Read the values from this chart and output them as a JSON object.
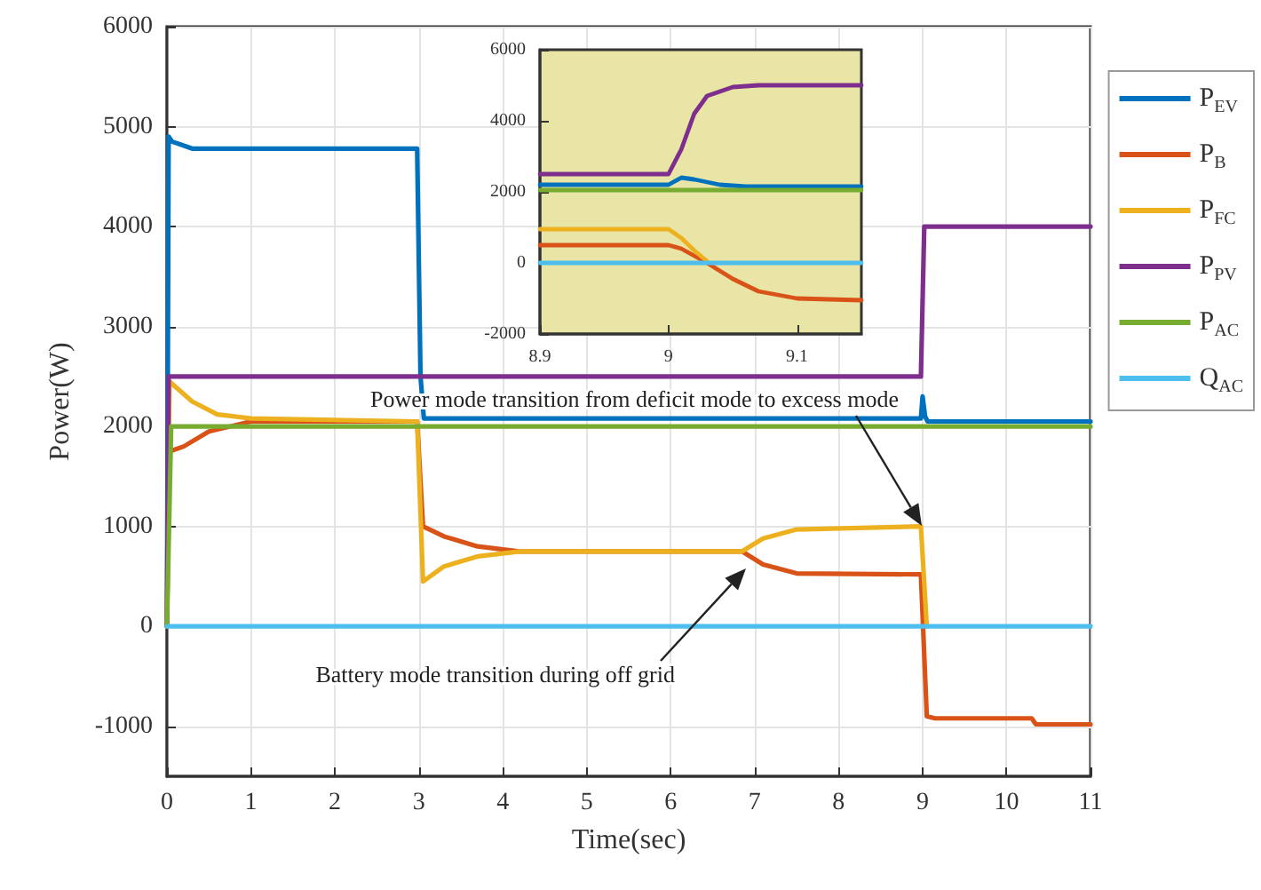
{
  "chart_data": [
    {
      "type": "line",
      "xlabel": "Time(sec)",
      "ylabel": "Power(W)",
      "xlim": [
        0,
        11
      ],
      "xticks": [
        0,
        1,
        2,
        3,
        4,
        5,
        6,
        7,
        8,
        9,
        10,
        11
      ],
      "ylim": [
        -1500,
        6000
      ],
      "yticks": [
        -1000,
        0,
        1000,
        2000,
        3000,
        4000,
        5000,
        6000
      ],
      "grid": true,
      "legend": "top right",
      "annotations": [
        "Power mode transition from deficit mode to excess mode",
        "Battery mode transition during off grid"
      ],
      "series": [
        {
          "name": "P$_{EV}$",
          "color": "#0072bd",
          "x": [
            0,
            0.02,
            0.06,
            0.3,
            2.98,
            3.02,
            3.06,
            8.98,
            9.0,
            9.03,
            9.06,
            11
          ],
          "values": [
            0,
            4900,
            4850,
            4780,
            4780,
            2500,
            2080,
            2080,
            2300,
            2100,
            2050,
            2050
          ]
        },
        {
          "name": "P$_{B}$",
          "color": "#d95319",
          "x": [
            0,
            0.03,
            0.2,
            0.5,
            1,
            2.98,
            3.05,
            3.3,
            3.7,
            4.2,
            6.85,
            7.1,
            7.5,
            8.98,
            9.05,
            9.15,
            10.3,
            10.35,
            11
          ],
          "values": [
            0,
            1750,
            1800,
            1950,
            2050,
            2050,
            1000,
            900,
            800,
            750,
            750,
            620,
            530,
            520,
            -900,
            -920,
            -920,
            -980,
            -980
          ]
        },
        {
          "name": "P$_{FC}$",
          "color": "#edb120",
          "x": [
            0,
            0.03,
            0.3,
            0.6,
            1,
            2.98,
            3.05,
            3.3,
            3.7,
            4.2,
            6.85,
            7.1,
            7.5,
            8.98,
            9.05
          ],
          "values": [
            0,
            2450,
            2250,
            2120,
            2080,
            2050,
            450,
            600,
            700,
            750,
            750,
            880,
            970,
            1000,
            0
          ]
        },
        {
          "name": "P$_{PV}$",
          "color": "#7e2f8e",
          "x": [
            0,
            0.02,
            8.98,
            9.02,
            11
          ],
          "values": [
            0,
            2500,
            2500,
            4000,
            4000
          ]
        },
        {
          "name": "P$_{AC}$",
          "color": "#77ac30",
          "x": [
            0,
            0.05,
            11
          ],
          "values": [
            0,
            2000,
            2000
          ]
        },
        {
          "name": "Q$_{AC}$",
          "color": "#4dbeee",
          "x": [
            0,
            11
          ],
          "values": [
            0,
            0
          ]
        }
      ]
    },
    {
      "type": "line",
      "xlim": [
        8.9,
        9.15
      ],
      "xticks": [
        8.9,
        9,
        9.1
      ],
      "ylim": [
        -2000,
        6000
      ],
      "yticks": [
        -2000,
        0,
        2000,
        4000,
        6000
      ],
      "series": [
        {
          "color": "#0072bd",
          "x": [
            8.9,
            9.0,
            9.01,
            9.02,
            9.04,
            9.06,
            9.15
          ],
          "values": [
            2200,
            2200,
            2400,
            2350,
            2200,
            2150,
            2150
          ]
        },
        {
          "color": "#d95319",
          "x": [
            8.9,
            9.0,
            9.01,
            9.02,
            9.03,
            9.05,
            9.07,
            9.1,
            9.15
          ],
          "values": [
            500,
            500,
            400,
            200,
            0,
            -450,
            -800,
            -1000,
            -1050
          ]
        },
        {
          "color": "#edb120",
          "x": [
            8.9,
            9.0,
            9.01,
            9.02,
            9.03
          ],
          "values": [
            950,
            950,
            700,
            350,
            50
          ]
        },
        {
          "color": "#7e2f8e",
          "x": [
            8.9,
            9.0,
            9.01,
            9.02,
            9.03,
            9.05,
            9.07,
            9.15
          ],
          "values": [
            2500,
            2500,
            3200,
            4200,
            4700,
            4950,
            5000,
            5000
          ]
        },
        {
          "color": "#77ac30",
          "x": [
            8.9,
            9.15
          ],
          "values": [
            2050,
            2050
          ]
        },
        {
          "color": "#4dbeee",
          "x": [
            8.9,
            9.15
          ],
          "values": [
            0,
            0
          ]
        }
      ]
    }
  ]
}
